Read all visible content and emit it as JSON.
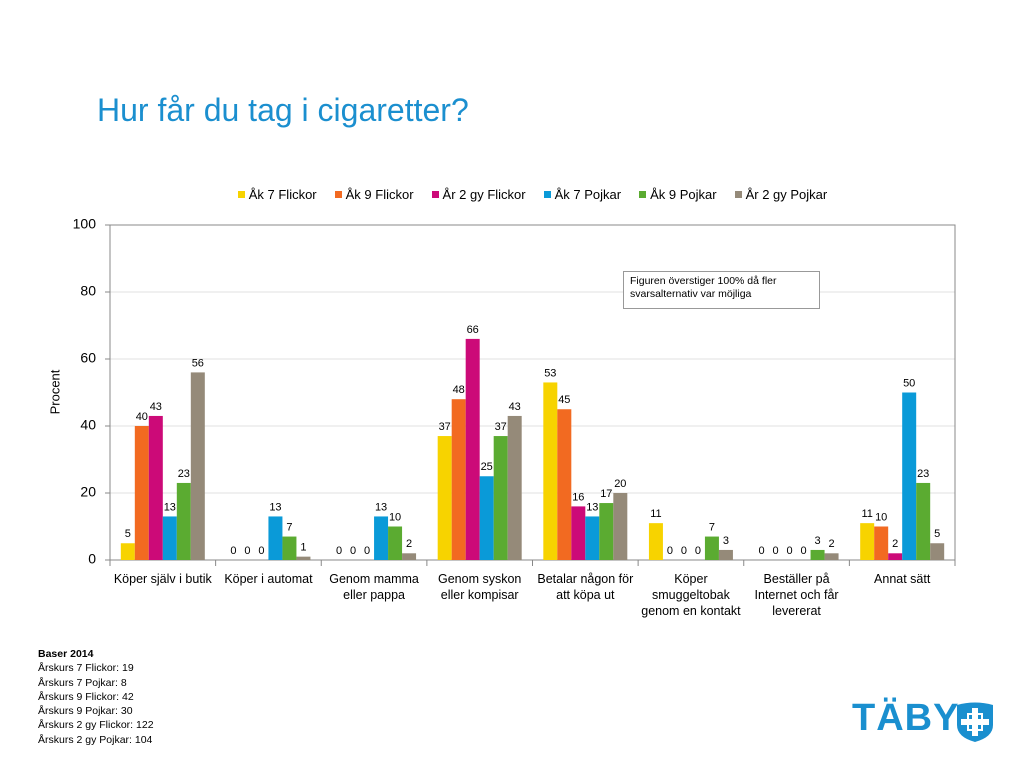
{
  "chart_data": {
    "type": "bar",
    "title": "Hur får du tag i cigaretter?",
    "ylabel": "Procent",
    "annotation": "Figuren överstiger 100% då fler svarsalternativ var möjliga",
    "categories": [
      "Köper själv i butik",
      "Köper i automat",
      "Genom mamma eller pappa",
      "Genom syskon eller kompisar",
      "Betalar någon för att köpa ut",
      "Köper smuggeltobak genom en kontakt",
      "Beställer på Internet och får levererat",
      "Annat sätt"
    ],
    "series": [
      {
        "name": "Åk 7 Flickor",
        "color": "#f7d300",
        "values": [
          5,
          0,
          0,
          37,
          53,
          11,
          0,
          11
        ]
      },
      {
        "name": "Åk 9 Flickor",
        "color": "#f26a21",
        "values": [
          40,
          0,
          0,
          48,
          45,
          0,
          0,
          10
        ]
      },
      {
        "name": "År 2 gy Flickor",
        "color": "#cc0a78",
        "values": [
          43,
          0,
          0,
          66,
          16,
          0,
          0,
          2
        ]
      },
      {
        "name": "Åk 7 Pojkar",
        "color": "#0a9ad8",
        "values": [
          13,
          13,
          13,
          25,
          13,
          0,
          0,
          50
        ]
      },
      {
        "name": "Åk 9 Pojkar",
        "color": "#5bab31",
        "values": [
          23,
          7,
          10,
          37,
          17,
          7,
          3,
          23
        ]
      },
      {
        "name": "År 2 gy Pojkar",
        "color": "#958a79",
        "values": [
          56,
          1,
          2,
          43,
          20,
          3,
          2,
          5
        ]
      }
    ],
    "ylim": [
      0,
      100
    ],
    "yticks": [
      0,
      20,
      40,
      60,
      80,
      100
    ],
    "grid": true
  },
  "baser": {
    "title": "Baser 2014",
    "lines": [
      "Årskurs 7 Flickor: 19",
      "Årskurs 7 Pojkar: 8",
      "Årskurs 9 Flickor: 42",
      "Årskurs 9 Pojkar: 30",
      "Årskurs 2 gy Flickor: 122",
      "Årskurs 2 gy Pojkar: 104"
    ]
  },
  "logo": "TÄBY"
}
